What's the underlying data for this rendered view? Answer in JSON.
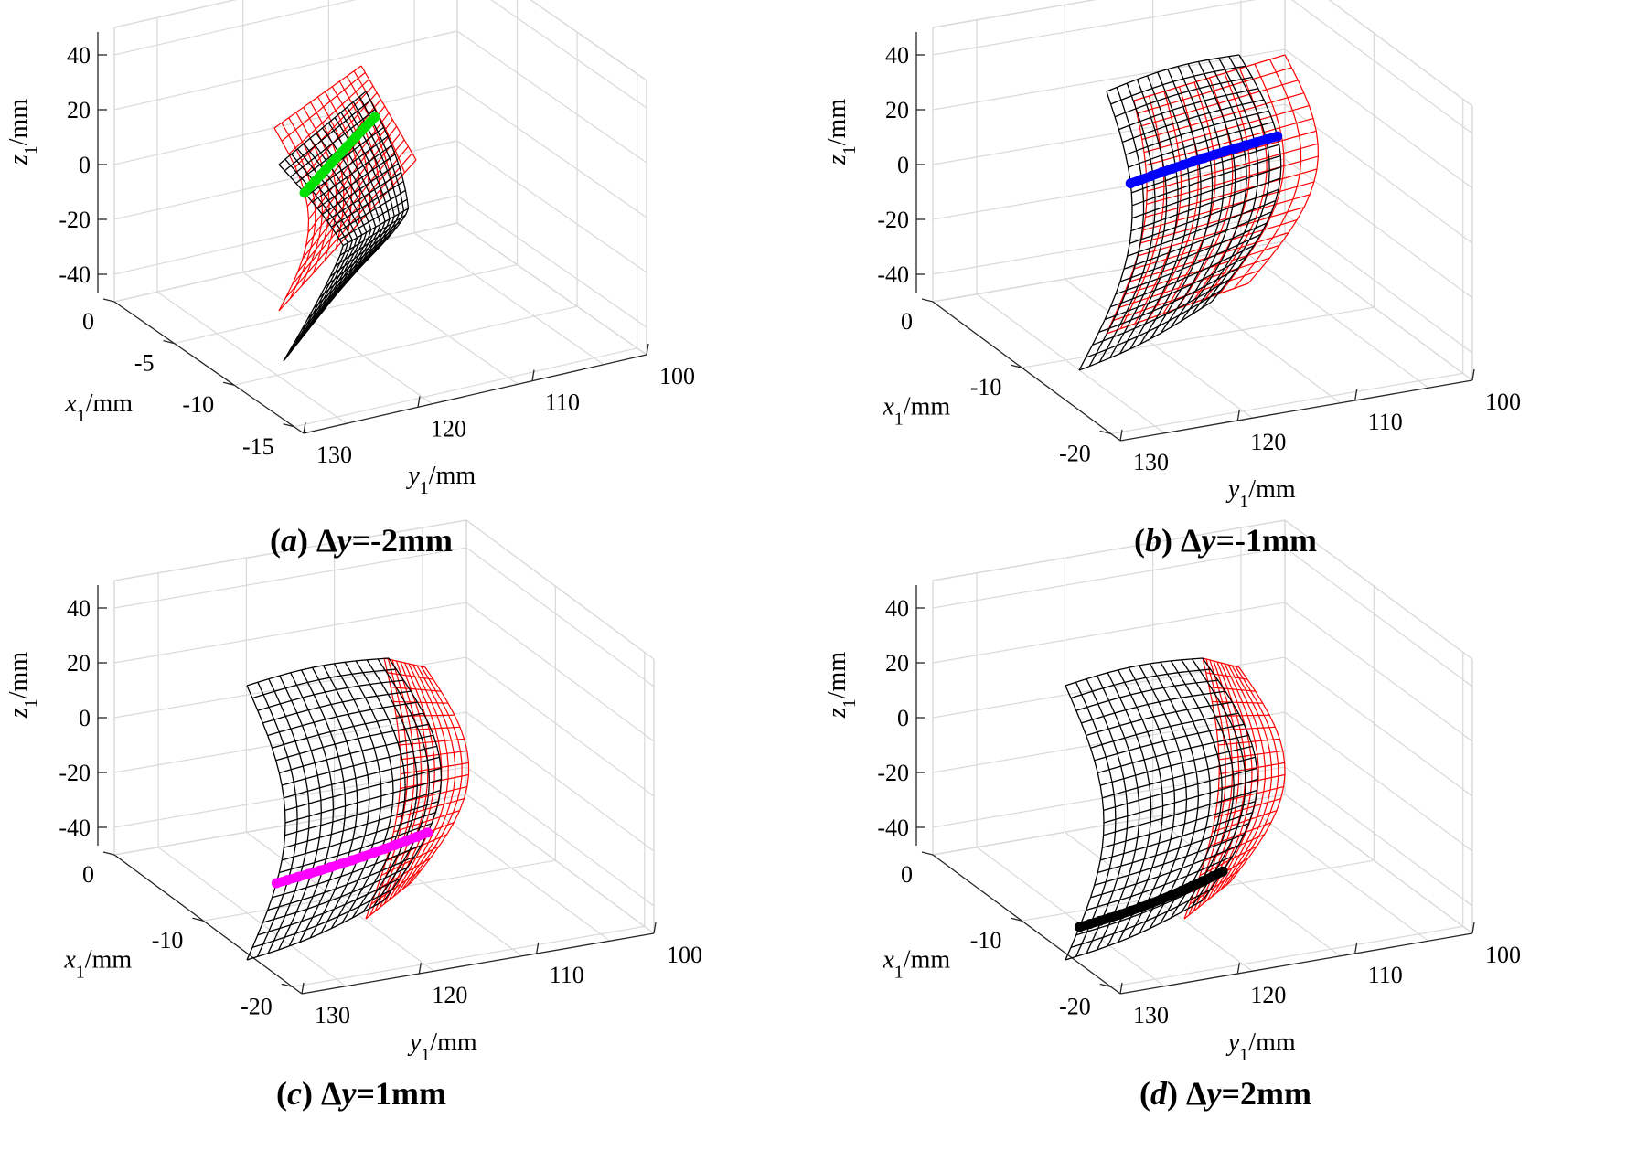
{
  "chart_data": [
    {
      "type": "surface3d",
      "panel_letter": "a",
      "caption_delta": "Δ",
      "caption_var": "y",
      "caption_value": "=-2mm",
      "xlabel": "x",
      "xlabel_sub": "1",
      "xlabel_unit": "/mm",
      "ylabel": "y",
      "ylabel_sub": "1",
      "ylabel_unit": "/mm",
      "zlabel": "z",
      "zlabel_sub": "1",
      "zlabel_unit": "/mm",
      "x_ticks": [
        "0",
        "-5",
        "-10",
        "-15"
      ],
      "y_ticks": [
        "130",
        "120",
        "110",
        "100"
      ],
      "z_ticks": [
        "40",
        "20",
        "0",
        "-20",
        "-40"
      ],
      "contact_line_color": "#00e000",
      "surface_color": "#000000",
      "mating_surface_color": "#ff0000"
    },
    {
      "type": "surface3d",
      "panel_letter": "b",
      "caption_delta": "Δ",
      "caption_var": "y",
      "caption_value": "=-1mm",
      "xlabel": "x",
      "xlabel_sub": "1",
      "xlabel_unit": "/mm",
      "ylabel": "y",
      "ylabel_sub": "1",
      "ylabel_unit": "/mm",
      "zlabel": "z",
      "zlabel_sub": "1",
      "zlabel_unit": "/mm",
      "x_ticks": [
        "0",
        "-10",
        "-20"
      ],
      "y_ticks": [
        "130",
        "120",
        "110",
        "100"
      ],
      "z_ticks": [
        "40",
        "20",
        "0",
        "-20",
        "-40"
      ],
      "contact_line_color": "#0000ff",
      "surface_color": "#000000",
      "mating_surface_color": "#ff0000"
    },
    {
      "type": "surface3d",
      "panel_letter": "c",
      "caption_delta": "Δ",
      "caption_var": "y",
      "caption_value": "=1mm",
      "xlabel": "x",
      "xlabel_sub": "1",
      "xlabel_unit": "/mm",
      "ylabel": "y",
      "ylabel_sub": "1",
      "ylabel_unit": "/mm",
      "zlabel": "z",
      "zlabel_sub": "1",
      "zlabel_unit": "/mm",
      "x_ticks": [
        "0",
        "-10",
        "-20"
      ],
      "y_ticks": [
        "130",
        "120",
        "110",
        "100"
      ],
      "z_ticks": [
        "40",
        "20",
        "0",
        "-20",
        "-40"
      ],
      "contact_line_color": "#ff00ff",
      "surface_color": "#000000",
      "mating_surface_color": "#ff0000"
    },
    {
      "type": "surface3d",
      "panel_letter": "d",
      "caption_delta": "Δ",
      "caption_var": "y",
      "caption_value": "=2mm",
      "xlabel": "x",
      "xlabel_sub": "1",
      "xlabel_unit": "/mm",
      "ylabel": "y",
      "ylabel_sub": "1",
      "ylabel_unit": "/mm",
      "zlabel": "z",
      "zlabel_sub": "1",
      "zlabel_unit": "/mm",
      "x_ticks": [
        "0",
        "-10",
        "-20"
      ],
      "y_ticks": [
        "130",
        "120",
        "110",
        "100"
      ],
      "z_ticks": [
        "40",
        "20",
        "0",
        "-20",
        "-40"
      ],
      "contact_line_color": "#000000",
      "surface_color": "#000000",
      "mating_surface_color": "#ff0000"
    }
  ]
}
